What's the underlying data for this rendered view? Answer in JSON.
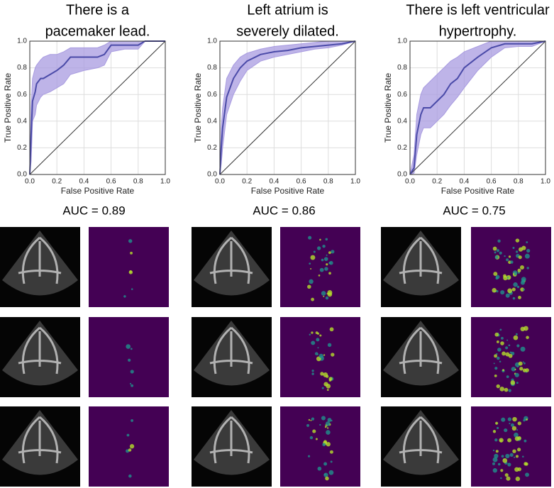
{
  "chart_data": [
    {
      "type": "line",
      "title": [
        "There is a",
        "pacemaker lead."
      ],
      "annotation": "AUC = 0.89",
      "xlabel": "False Positive Rate",
      "ylabel": "True Positive Rate",
      "color": "#4a4aa8",
      "band_color": "#a89be0",
      "grid": true,
      "xlim": [
        0,
        1
      ],
      "ylim": [
        0,
        1
      ],
      "xticks": [
        {
          "value": 0,
          "label": "0.0"
        },
        0.2,
        0.4,
        0.6,
        0.8,
        {
          "value": 1,
          "label": "1.0"
        }
      ],
      "yticks": [
        {
          "value": 0,
          "label": "0.0"
        },
        0.2,
        0.4,
        0.6,
        0.8,
        {
          "value": 1,
          "label": "1.0"
        }
      ],
      "x": [
        0,
        0.01,
        0.02,
        0.04,
        0.05,
        0.08,
        0.1,
        0.15,
        0.2,
        0.25,
        0.3,
        0.4,
        0.5,
        0.55,
        0.6,
        0.7,
        0.8,
        0.85,
        1
      ],
      "values": [
        0,
        0.3,
        0.55,
        0.62,
        0.68,
        0.72,
        0.72,
        0.75,
        0.78,
        0.82,
        0.88,
        0.88,
        0.88,
        0.9,
        0.97,
        0.97,
        0.97,
        1,
        1
      ],
      "upper": [
        0,
        0.5,
        0.72,
        0.8,
        0.82,
        0.86,
        0.88,
        0.9,
        0.9,
        0.92,
        0.95,
        0.95,
        0.95,
        0.97,
        1,
        1,
        1,
        1,
        1
      ],
      "lower": [
        0,
        0.1,
        0.4,
        0.45,
        0.52,
        0.58,
        0.6,
        0.62,
        0.65,
        0.68,
        0.75,
        0.78,
        0.8,
        0.82,
        0.92,
        0.94,
        0.94,
        1,
        1
      ]
    },
    {
      "type": "line",
      "title": [
        "Left atrium is",
        "severely dilated."
      ],
      "annotation": "AUC = 0.86",
      "xlabel": "False Positive Rate",
      "ylabel": "True Positive Rate",
      "color": "#4a4aa8",
      "band_color": "#a89be0",
      "grid": true,
      "xlim": [
        0,
        1
      ],
      "ylim": [
        0,
        1
      ],
      "xticks": [
        {
          "value": 0,
          "label": "0.0"
        },
        0.2,
        0.4,
        0.6,
        0.8,
        {
          "value": 1,
          "label": "1.0"
        }
      ],
      "yticks": [
        {
          "value": 0,
          "label": "0.0"
        },
        0.2,
        0.4,
        0.6,
        0.8,
        {
          "value": 1,
          "label": "1.0"
        }
      ],
      "x": [
        0,
        0.01,
        0.02,
        0.05,
        0.1,
        0.15,
        0.2,
        0.3,
        0.4,
        0.5,
        0.6,
        0.7,
        0.8,
        0.9,
        1
      ],
      "values": [
        0,
        0.2,
        0.35,
        0.58,
        0.72,
        0.8,
        0.85,
        0.9,
        0.92,
        0.93,
        0.95,
        0.96,
        0.97,
        0.98,
        1
      ],
      "upper": [
        0,
        0.35,
        0.5,
        0.72,
        0.82,
        0.88,
        0.91,
        0.94,
        0.96,
        0.97,
        0.98,
        0.99,
        1,
        1,
        1
      ],
      "lower": [
        0,
        0.08,
        0.2,
        0.45,
        0.6,
        0.7,
        0.78,
        0.85,
        0.88,
        0.9,
        0.92,
        0.94,
        0.95,
        0.97,
        1
      ]
    },
    {
      "type": "line",
      "title": [
        "There is left ventricular",
        "hypertrophy."
      ],
      "annotation": "AUC = 0.75",
      "xlabel": "False Positive Rate",
      "ylabel": "True Positive Rate",
      "color": "#4a4aa8",
      "band_color": "#a89be0",
      "grid": true,
      "xlim": [
        0,
        1
      ],
      "ylim": [
        0,
        1
      ],
      "xticks": [
        {
          "value": 0,
          "label": "0.0"
        },
        0.2,
        0.4,
        0.6,
        0.8,
        {
          "value": 1,
          "label": "1.0"
        }
      ],
      "yticks": [
        {
          "value": 0,
          "label": "0.0"
        },
        0.2,
        0.4,
        0.6,
        0.8,
        {
          "value": 1,
          "label": "1.0"
        }
      ],
      "x": [
        0,
        0.03,
        0.05,
        0.08,
        0.1,
        0.15,
        0.2,
        0.25,
        0.3,
        0.35,
        0.4,
        0.5,
        0.6,
        0.7,
        0.8,
        0.9,
        1
      ],
      "values": [
        0,
        0.05,
        0.3,
        0.45,
        0.5,
        0.5,
        0.55,
        0.6,
        0.68,
        0.72,
        0.8,
        0.88,
        0.95,
        0.98,
        0.98,
        0.98,
        1
      ],
      "upper": [
        0,
        0.15,
        0.45,
        0.6,
        0.65,
        0.7,
        0.75,
        0.8,
        0.85,
        0.88,
        0.92,
        0.96,
        1,
        1,
        1,
        1,
        1
      ],
      "lower": [
        0,
        0.01,
        0.15,
        0.3,
        0.35,
        0.35,
        0.4,
        0.45,
        0.52,
        0.58,
        0.65,
        0.78,
        0.88,
        0.95,
        0.96,
        0.96,
        1
      ]
    }
  ]
}
